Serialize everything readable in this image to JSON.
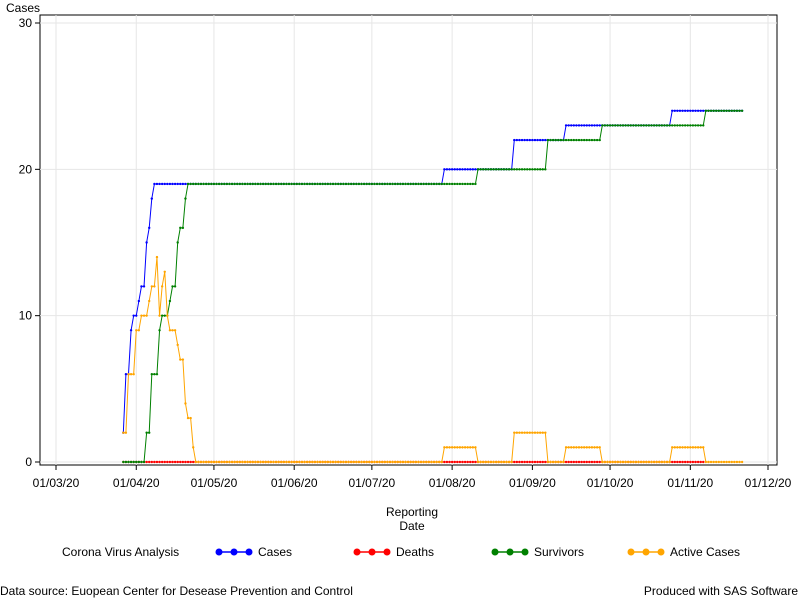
{
  "chart_data": {
    "type": "line",
    "ylabel": "Cases",
    "xlabel_line1": "Reporting",
    "xlabel_line2": "Date",
    "ylim": [
      0,
      30
    ],
    "yticks": [
      "0",
      "10",
      "20",
      "30"
    ],
    "xticks": [
      "01/03/20",
      "01/04/20",
      "01/05/20",
      "01/06/20",
      "01/07/20",
      "01/08/20",
      "01/09/20",
      "01/10/20",
      "01/11/20",
      "01/12/20"
    ],
    "grid": true,
    "legend_position": "bottom",
    "legend_title": "Corona Virus Analysis",
    "series": [
      {
        "name": "Cases",
        "color": "#0000ff",
        "points": [
          [
            "2020-03-27",
            2
          ],
          [
            "2020-03-28",
            6
          ],
          [
            "2020-03-30",
            9
          ],
          [
            "2020-03-31",
            10
          ],
          [
            "2020-04-02",
            11
          ],
          [
            "2020-04-03",
            12
          ],
          [
            "2020-04-05",
            15
          ],
          [
            "2020-04-06",
            16
          ],
          [
            "2020-04-07",
            18
          ],
          [
            "2020-04-08",
            19
          ],
          [
            "2020-07-28",
            19
          ],
          [
            "2020-07-29",
            20
          ],
          [
            "2020-08-24",
            20
          ],
          [
            "2020-08-25",
            22
          ],
          [
            "2020-09-13",
            22
          ],
          [
            "2020-09-14",
            23
          ],
          [
            "2020-10-24",
            23
          ],
          [
            "2020-10-25",
            24
          ],
          [
            "2020-11-21",
            24
          ]
        ]
      },
      {
        "name": "Deaths",
        "color": "#ff0000",
        "points": [
          [
            "2020-03-27",
            0
          ],
          [
            "2020-04-05",
            0
          ],
          [
            "2020-04-26",
            0
          ],
          [
            "2020-07-28",
            0
          ],
          [
            "2020-08-10",
            0
          ],
          [
            "2020-08-24",
            0
          ],
          [
            "2020-09-06",
            0
          ],
          [
            "2020-09-14",
            0
          ],
          [
            "2020-09-28",
            0
          ],
          [
            "2020-10-24",
            0
          ],
          [
            "2020-11-06",
            0
          ]
        ]
      },
      {
        "name": "Survivors",
        "color": "#008000",
        "points": [
          [
            "2020-03-27",
            0
          ],
          [
            "2020-04-04",
            0
          ],
          [
            "2020-04-05",
            2
          ],
          [
            "2020-04-07",
            6
          ],
          [
            "2020-04-10",
            9
          ],
          [
            "2020-04-11",
            10
          ],
          [
            "2020-04-14",
            11
          ],
          [
            "2020-04-15",
            12
          ],
          [
            "2020-04-17",
            15
          ],
          [
            "2020-04-18",
            16
          ],
          [
            "2020-04-20",
            18
          ],
          [
            "2020-04-21",
            19
          ],
          [
            "2020-08-10",
            19
          ],
          [
            "2020-08-11",
            20
          ],
          [
            "2020-09-06",
            20
          ],
          [
            "2020-09-07",
            22
          ],
          [
            "2020-09-27",
            22
          ],
          [
            "2020-09-28",
            23
          ],
          [
            "2020-11-06",
            23
          ],
          [
            "2020-11-07",
            24
          ],
          [
            "2020-11-21",
            24
          ]
        ]
      },
      {
        "name": "Active Cases",
        "color": "#ffa500",
        "points": [
          [
            "2020-03-27",
            2
          ],
          [
            "2020-03-28",
            2
          ],
          [
            "2020-03-29",
            6
          ],
          [
            "2020-03-30",
            6
          ],
          [
            "2020-03-31",
            6
          ],
          [
            "2020-04-01",
            9
          ],
          [
            "2020-04-02",
            9
          ],
          [
            "2020-04-03",
            10
          ],
          [
            "2020-04-04",
            10
          ],
          [
            "2020-04-05",
            10
          ],
          [
            "2020-04-06",
            11
          ],
          [
            "2020-04-07",
            12
          ],
          [
            "2020-04-08",
            12
          ],
          [
            "2020-04-09",
            14
          ],
          [
            "2020-04-10",
            10
          ],
          [
            "2020-04-11",
            12
          ],
          [
            "2020-04-12",
            13
          ],
          [
            "2020-04-13",
            10
          ],
          [
            "2020-04-14",
            9
          ],
          [
            "2020-04-15",
            9
          ],
          [
            "2020-04-16",
            9
          ],
          [
            "2020-04-17",
            8
          ],
          [
            "2020-04-18",
            7
          ],
          [
            "2020-04-19",
            7
          ],
          [
            "2020-04-20",
            4
          ],
          [
            "2020-04-21",
            3
          ],
          [
            "2020-04-22",
            3
          ],
          [
            "2020-04-23",
            1
          ],
          [
            "2020-04-24",
            0
          ],
          [
            "2020-07-28",
            0
          ],
          [
            "2020-07-29",
            1
          ],
          [
            "2020-08-10",
            1
          ],
          [
            "2020-08-11",
            0
          ],
          [
            "2020-08-24",
            0
          ],
          [
            "2020-08-25",
            2
          ],
          [
            "2020-09-06",
            2
          ],
          [
            "2020-09-07",
            0
          ],
          [
            "2020-09-13",
            0
          ],
          [
            "2020-09-14",
            1
          ],
          [
            "2020-09-27",
            1
          ],
          [
            "2020-09-28",
            0
          ],
          [
            "2020-10-24",
            0
          ],
          [
            "2020-10-25",
            1
          ],
          [
            "2020-11-06",
            1
          ],
          [
            "2020-11-07",
            0
          ],
          [
            "2020-11-21",
            0
          ]
        ]
      }
    ]
  },
  "footer": {
    "source": "Data source: Euopean Center for Desease Prevention and Control",
    "producer": "Produced with SAS Software"
  }
}
